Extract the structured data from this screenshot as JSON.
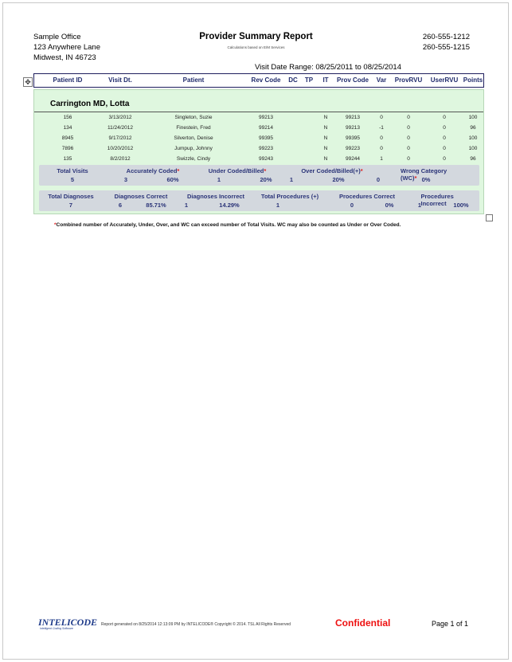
{
  "office": {
    "name": "Sample Office",
    "street": "123 Anywhere Lane",
    "city": "Midwest, IN 46723",
    "phone1": "260-555-1212",
    "phone2": "260-555-1215"
  },
  "report": {
    "title": "Provider Summary Report",
    "subtitle": "Calculations based on E/M Services",
    "date_range": "Visit Date Range: 08/25/2011 to 08/25/2014"
  },
  "columns": [
    "Patient ID",
    "Visit Dt.",
    "Patient",
    "Rev Code",
    "DC",
    "TP",
    "IT",
    "Prov Code",
    "Var",
    "ProvRVU",
    "UserRVU",
    "Points"
  ],
  "provider": "Carrington MD, Lotta",
  "rows": [
    [
      "156",
      "3/13/2012",
      "Singleton, Suzie",
      "99213",
      "",
      "",
      "N",
      "99213",
      "0",
      "0",
      "0",
      "100"
    ],
    [
      "134",
      "11/24/2012",
      "Finestein, Fred",
      "99214",
      "",
      "",
      "N",
      "99213",
      "-1",
      "0",
      "0",
      "96"
    ],
    [
      "8945",
      "9/17/2012",
      "Silverton, Denise",
      "99395",
      "",
      "",
      "N",
      "99395",
      "0",
      "0",
      "0",
      "100"
    ],
    [
      "7896",
      "10/20/2012",
      "Jumpup, Johnny",
      "99223",
      "",
      "",
      "N",
      "99223",
      "0",
      "0",
      "0",
      "100"
    ],
    [
      "135",
      "8/2/2012",
      "Swizzle, Cindy",
      "99243",
      "",
      "",
      "N",
      "99244",
      "1",
      "0",
      "0",
      "96"
    ]
  ],
  "summary1": {
    "total_visits": {
      "label": "Total Visits",
      "count": "5"
    },
    "accurate": {
      "label": "Accurately Coded",
      "count": "3",
      "pct": "60%"
    },
    "under": {
      "label": "Under Coded/Billed",
      "count": "1",
      "pct": "20%"
    },
    "over": {
      "label": "Over Coded/Billed(+)",
      "count": "1",
      "pct": "20%"
    },
    "wrong": {
      "label": "Wrong Category (WC)",
      "count": "0",
      "pct": "0%"
    },
    "star": "*"
  },
  "summary2": {
    "total_dx": {
      "label": "Total Diagnoses",
      "count": "7"
    },
    "dx_correct": {
      "label": "Diagnoses Correct",
      "count": "6",
      "pct": "85.71%"
    },
    "dx_incorrect": {
      "label": "Diagnoses Incorrect",
      "count": "1",
      "pct": "14.29%"
    },
    "total_proc": {
      "label": "Total Procedures (+)",
      "count": "1"
    },
    "proc_correct": {
      "label": "Procedures Correct",
      "count": "0",
      "pct": "0%"
    },
    "proc_incorrect": {
      "label": "Procedures Incorrect",
      "count": "1",
      "pct": "100%"
    }
  },
  "note": {
    "star": "*",
    "text": "Combined number of Accurately, Under, Over, and WC can exceed number of Total Visits. WC may also be counted as Under or Over Coded."
  },
  "footer": {
    "logo": "INTELICODE",
    "logo_tagline": "Intelligent Coding Software",
    "generated": "Report generated on 8/25/2014 12:13:09 PM by INTELICODE® Copyright © 2014. TSL All Rights Reserved",
    "confidential": "Confidential",
    "page": "Page 1 of 1"
  }
}
